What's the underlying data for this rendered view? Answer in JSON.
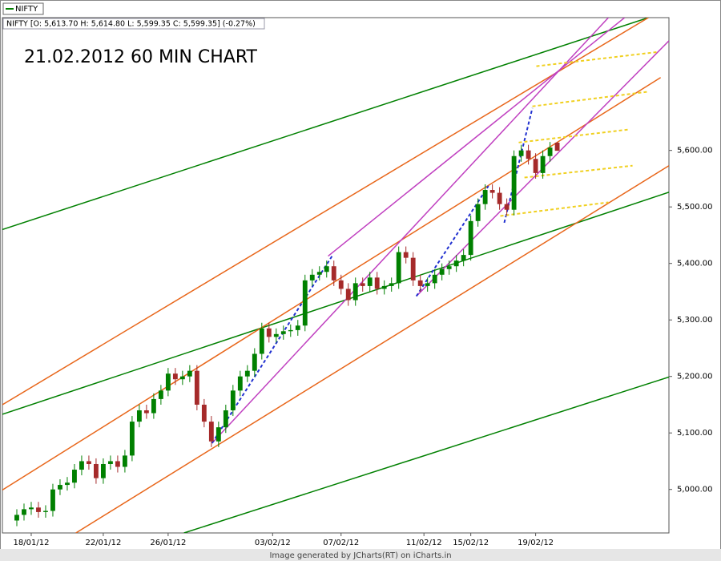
{
  "chart_data": {
    "type": "candlestick",
    "legend": "NIFTY",
    "info": "NIFTY [O: 5,613.70  H: 5,614.80  L: 5,599.35  C: 5,599.35] (-0.27%)",
    "title": "21.02.2012 60 MIN CHART",
    "footer": "Image generated by  JCharts(RT) on iCharts.in",
    "up_color": "#008000",
    "down_color": "#a52a2a",
    "xlim": [
      0,
      185
    ],
    "ylim": [
      4923,
      5835
    ],
    "xticks": [
      {
        "value": 8,
        "label": "18/01/12"
      },
      {
        "value": 28,
        "label": "22/01/12"
      },
      {
        "value": 46,
        "label": "26/01/12"
      },
      {
        "value": 75,
        "label": "03/02/12"
      },
      {
        "value": 94,
        "label": "07/02/12"
      },
      {
        "value": 117,
        "label": "11/02/12"
      },
      {
        "value": 130,
        "label": "15/02/12"
      },
      {
        "value": 148,
        "label": "19/02/12"
      }
    ],
    "yticks": [
      {
        "value": 5000,
        "label": "5,000.00"
      },
      {
        "value": 5100,
        "label": "5,100.00"
      },
      {
        "value": 5200,
        "label": "5,200.00"
      },
      {
        "value": 5300,
        "label": "5,300.00"
      },
      {
        "value": 5400,
        "label": "5,400.00"
      },
      {
        "value": 5500,
        "label": "5,500.00"
      },
      {
        "value": 5600,
        "label": "5,600.00"
      }
    ],
    "x": [
      4,
      6,
      8,
      10,
      12,
      14,
      16,
      18,
      20,
      22,
      24,
      26,
      28,
      30,
      32,
      34,
      36,
      38,
      40,
      42,
      44,
      46,
      48,
      50,
      52,
      54,
      56,
      58,
      60,
      62,
      64,
      66,
      68,
      70,
      72,
      74,
      76,
      78,
      80,
      82,
      84,
      86,
      88,
      90,
      92,
      94,
      96,
      98,
      100,
      102,
      104,
      106,
      108,
      110,
      112,
      114,
      116,
      118,
      120,
      122,
      124,
      126,
      128,
      130,
      132,
      134,
      136,
      138,
      140,
      142,
      144,
      146,
      148,
      150,
      152,
      154
    ],
    "open": [
      4945,
      4955,
      4965,
      4968,
      4960,
      4962,
      5000,
      5008,
      5012,
      5035,
      5050,
      5045,
      5020,
      5045,
      5050,
      5040,
      5060,
      5120,
      5140,
      5135,
      5160,
      5175,
      5205,
      5195,
      5200,
      5210,
      5150,
      5120,
      5085,
      5110,
      5140,
      5175,
      5200,
      5210,
      5240,
      5285,
      5270,
      5275,
      5280,
      5282,
      5290,
      5370,
      5380,
      5385,
      5395,
      5370,
      5355,
      5335,
      5365,
      5360,
      5375,
      5355,
      5360,
      5365,
      5420,
      5410,
      5370,
      5360,
      5365,
      5380,
      5390,
      5395,
      5405,
      5415,
      5475,
      5505,
      5530,
      5525,
      5505,
      5495,
      5590,
      5600,
      5585,
      5560,
      5590,
      5613.7
    ],
    "high": [
      4965,
      4975,
      4978,
      4978,
      4972,
      5010,
      5018,
      5022,
      5045,
      5060,
      5060,
      5055,
      5055,
      5060,
      5060,
      5070,
      5130,
      5150,
      5150,
      5170,
      5185,
      5215,
      5215,
      5210,
      5220,
      5220,
      5160,
      5130,
      5120,
      5150,
      5185,
      5210,
      5220,
      5250,
      5295,
      5295,
      5285,
      5290,
      5292,
      5300,
      5380,
      5390,
      5395,
      5405,
      5405,
      5380,
      5365,
      5375,
      5375,
      5385,
      5385,
      5370,
      5375,
      5430,
      5430,
      5420,
      5380,
      5375,
      5390,
      5400,
      5405,
      5415,
      5425,
      5485,
      5515,
      5540,
      5540,
      5535,
      5515,
      5600,
      5610,
      5610,
      5595,
      5600,
      5615,
      5614.8
    ],
    "low": [
      4935,
      4945,
      4955,
      4950,
      4950,
      4952,
      4990,
      4998,
      5002,
      5025,
      5035,
      5010,
      5010,
      5035,
      5030,
      5030,
      5050,
      5110,
      5125,
      5125,
      5150,
      5165,
      5185,
      5185,
      5190,
      5140,
      5110,
      5075,
      5075,
      5100,
      5130,
      5165,
      5190,
      5200,
      5230,
      5260,
      5260,
      5265,
      5270,
      5272,
      5280,
      5360,
      5370,
      5375,
      5360,
      5345,
      5325,
      5325,
      5350,
      5350,
      5345,
      5345,
      5350,
      5355,
      5400,
      5360,
      5350,
      5350,
      5355,
      5370,
      5380,
      5385,
      5395,
      5405,
      5465,
      5495,
      5515,
      5495,
      5485,
      5485,
      5580,
      5575,
      5550,
      5550,
      5580,
      5599.35
    ],
    "close": [
      4955,
      4965,
      4968,
      4960,
      4962,
      5000,
      5008,
      5012,
      5035,
      5050,
      5045,
      5020,
      5045,
      5050,
      5040,
      5060,
      5120,
      5140,
      5135,
      5160,
      5175,
      5205,
      5195,
      5200,
      5210,
      5150,
      5120,
      5085,
      5110,
      5140,
      5175,
      5200,
      5210,
      5240,
      5285,
      5270,
      5275,
      5280,
      5282,
      5290,
      5370,
      5380,
      5385,
      5395,
      5370,
      5355,
      5335,
      5365,
      5360,
      5375,
      5355,
      5360,
      5365,
      5420,
      5410,
      5370,
      5360,
      5365,
      5380,
      5390,
      5395,
      5405,
      5415,
      5475,
      5505,
      5530,
      5525,
      5505,
      5495,
      5590,
      5600,
      5585,
      5560,
      5590,
      5605,
      5599.35
    ],
    "trendlines": [
      {
        "color": "#008000",
        "dash": false,
        "x": [
          0,
          179.3
        ],
        "y": [
          5460,
          5835
        ]
      },
      {
        "color": "#008000",
        "dash": false,
        "x": [
          0,
          185
        ],
        "y": [
          5133,
          5526
        ]
      },
      {
        "color": "#008000",
        "dash": false,
        "x": [
          50.4,
          185
        ],
        "y": [
          4923,
          5199
        ]
      },
      {
        "color": "#e8661a",
        "dash": false,
        "x": [
          0,
          179.3
        ],
        "y": [
          5150,
          5835
        ]
      },
      {
        "color": "#e8661a",
        "dash": false,
        "x": [
          0,
          182.7
        ],
        "y": [
          4999,
          5729
        ]
      },
      {
        "color": "#e8661a",
        "dash": false,
        "x": [
          20.4,
          185
        ],
        "y": [
          4923,
          5573
        ]
      },
      {
        "color": "#c040c0",
        "dash": false,
        "x": [
          58.2,
          168.2
        ],
        "y": [
          5082,
          5835
        ]
      },
      {
        "color": "#c040c0",
        "dash": false,
        "x": [
          90.4,
          172.7
        ],
        "y": [
          5413,
          5835
        ]
      },
      {
        "color": "#c040c0",
        "dash": false,
        "x": [
          114.9,
          185
        ],
        "y": [
          5342,
          5794
        ]
      },
      {
        "color": "#2030d0",
        "dash": true,
        "x": [
          58.2,
          91.5
        ],
        "y": [
          5082,
          5413
        ]
      },
      {
        "color": "#2030d0",
        "dash": true,
        "x": [
          114.9,
          134.9
        ],
        "y": [
          5342,
          5537
        ]
      },
      {
        "color": "#2030d0",
        "dash": true,
        "x": [
          139.3,
          147.1
        ],
        "y": [
          5472,
          5675
        ]
      },
      {
        "color": "#f0d020",
        "dash": true,
        "x": [
          148.2,
          181.6
        ],
        "y": [
          5749,
          5774
        ]
      },
      {
        "color": "#f0d020",
        "dash": true,
        "x": [
          147.1,
          179.3
        ],
        "y": [
          5678,
          5704
        ]
      },
      {
        "color": "#f0d020",
        "dash": true,
        "x": [
          143.3,
          173.8
        ],
        "y": [
          5614,
          5637
        ]
      },
      {
        "color": "#f0d020",
        "dash": true,
        "x": [
          144.9,
          174.9
        ],
        "y": [
          5552,
          5573
        ]
      },
      {
        "color": "#f0d020",
        "dash": true,
        "x": [
          138.2,
          168.2
        ],
        "y": [
          5484,
          5508
        ]
      }
    ]
  }
}
